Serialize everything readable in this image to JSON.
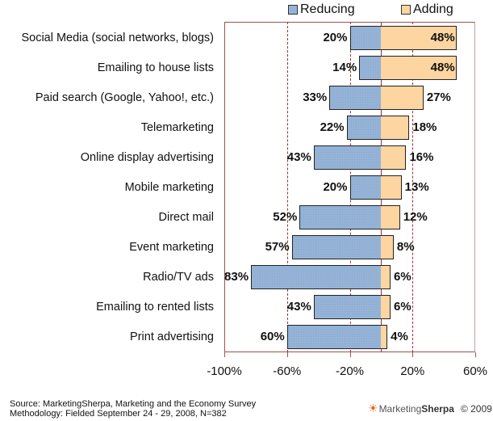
{
  "chart_data": {
    "type": "bar",
    "orientation": "horizontal-diverging",
    "title": "",
    "xlabel": "",
    "ylabel": "",
    "xlim": [
      -100,
      60
    ],
    "x_ticks": [
      "-100%",
      "-60%",
      "-20%",
      "20%",
      "60%"
    ],
    "grid": true,
    "legend_position": "top",
    "categories": [
      "Social Media (social networks, blogs)",
      "Emailing to house lists",
      "Paid search (Google, Yahoo!, etc.)",
      "Telemarketing",
      "Online display advertising",
      "Mobile marketing",
      "Direct mail",
      "Event marketing",
      "Radio/TV ads",
      "Emailing to rented lists",
      "Print advertising"
    ],
    "series": [
      {
        "name": "Reducing",
        "color": "#95b3d7",
        "values": [
          20,
          14,
          33,
          22,
          43,
          20,
          52,
          57,
          83,
          43,
          60
        ]
      },
      {
        "name": "Adding",
        "color": "#fcd5a0",
        "values": [
          48,
          48,
          27,
          18,
          16,
          13,
          12,
          8,
          6,
          6,
          4
        ]
      }
    ]
  },
  "legend": {
    "reducing": "Reducing",
    "adding": "Adding"
  },
  "footer": {
    "source": "Source: MarketingSherpa, Marketing and the Economy Survey",
    "methodology": "Methodology: Fielded September 24 - 29, 2008, N=382"
  },
  "brand": {
    "name_part1": "Marketing",
    "name_part2": "Sherpa",
    "copyright": "© 2009"
  }
}
